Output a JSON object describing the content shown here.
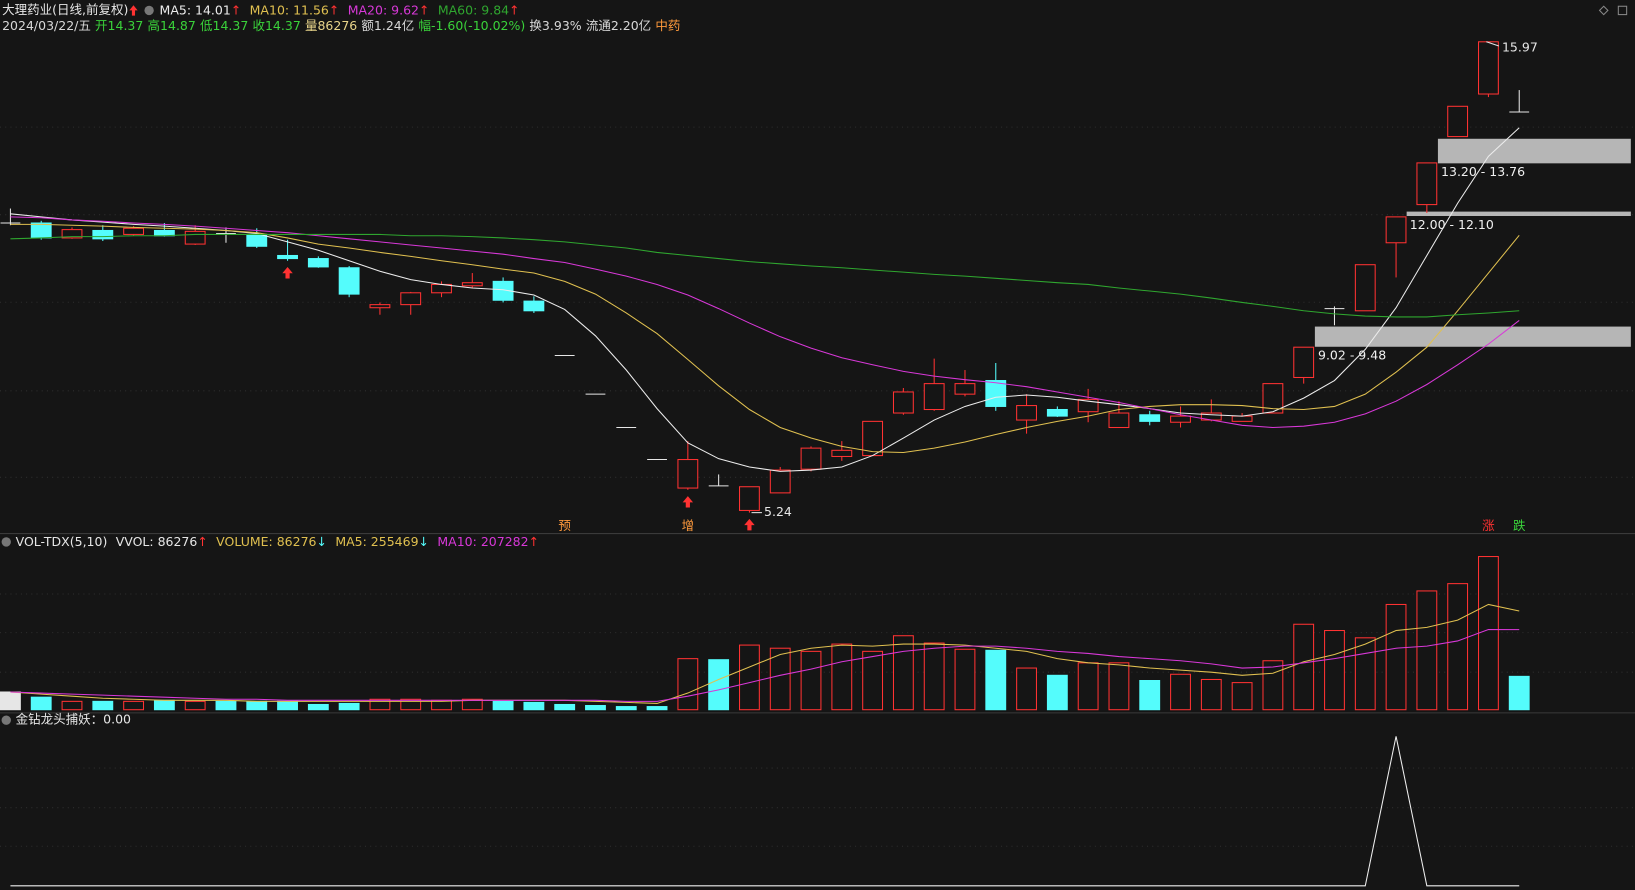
{
  "chart_data": [
    {
      "type": "candlestick",
      "title": "大理药业(日线,前复权)",
      "info": [
        {
          "text": "2024/03/22/五",
          "color": "#d8d8d8"
        },
        {
          "text": "开14.37",
          "color": "#3ad23a"
        },
        {
          "text": "高14.87",
          "color": "#3ad23a"
        },
        {
          "text": "低14.37",
          "color": "#3ad23a"
        },
        {
          "text": "收14.37",
          "color": "#3ad23a"
        },
        {
          "text": "量86276",
          "color": "#e8d48a"
        },
        {
          "text": "额1.24亿",
          "color": "#d8d8d8"
        },
        {
          "text": "幅-1.60(-10.02%)",
          "color": "#3ad23a"
        },
        {
          "text": "换3.93%",
          "color": "#d8d8d8"
        },
        {
          "text": "流通2.20亿",
          "color": "#d8d8d8"
        },
        {
          "text": "中药",
          "color": "#ff9a3c"
        }
      ],
      "open": [
        11.84,
        11.84,
        11.5,
        11.67,
        11.58,
        11.67,
        11.36,
        11.6,
        11.58,
        11.1,
        11.03,
        10.82,
        9.91,
        9.98,
        10.25,
        10.41,
        10.51,
        10.06,
        8.82,
        7.94,
        7.18,
        6.45,
        5.8,
        5.85,
        5.29,
        5.69,
        6.23,
        6.52,
        6.54,
        7.51,
        7.59,
        7.94,
        8.25,
        7.35,
        7.59,
        7.54,
        7.18,
        7.47,
        7.3,
        7.35,
        7.32,
        7.51,
        8.32,
        9.89,
        9.84,
        11.39,
        12.26,
        13.81,
        14.78,
        14.37
      ],
      "high": [
        12.17,
        11.89,
        11.74,
        11.79,
        11.77,
        11.84,
        11.79,
        11.74,
        11.72,
        11.46,
        11.08,
        10.86,
        10.03,
        10.27,
        10.51,
        10.7,
        10.6,
        10.17,
        8.82,
        7.94,
        7.18,
        6.45,
        6.87,
        6.11,
        5.83,
        6.28,
        6.75,
        6.87,
        7.32,
        8.08,
        8.75,
        8.49,
        8.65,
        7.94,
        7.66,
        8.06,
        7.78,
        7.56,
        7.66,
        7.82,
        7.51,
        8.18,
        9.01,
        9.94,
        10.89,
        11.98,
        13.21,
        14.5,
        15.97,
        14.87
      ],
      "low": [
        11.79,
        11.46,
        11.48,
        11.43,
        11.55,
        11.53,
        11.34,
        11.39,
        11.27,
        10.98,
        10.82,
        10.15,
        9.75,
        9.75,
        10.15,
        10.36,
        10.03,
        9.79,
        8.82,
        7.94,
        7.18,
        6.45,
        5.76,
        5.85,
        5.24,
        5.69,
        6.18,
        6.42,
        6.54,
        7.47,
        7.56,
        7.89,
        7.56,
        7.04,
        7.42,
        7.3,
        7.18,
        7.23,
        7.18,
        7.32,
        7.32,
        7.51,
        8.18,
        9.51,
        9.84,
        10.6,
        12.07,
        13.81,
        14.71,
        14.37
      ],
      "close": [
        11.84,
        11.5,
        11.69,
        11.48,
        11.72,
        11.55,
        11.65,
        11.6,
        11.31,
        11.03,
        10.84,
        10.22,
        9.98,
        10.25,
        10.44,
        10.48,
        10.08,
        9.84,
        8.82,
        7.94,
        7.18,
        6.45,
        6.45,
        5.85,
        5.83,
        6.21,
        6.71,
        6.66,
        7.32,
        7.99,
        8.18,
        8.18,
        7.66,
        7.68,
        7.44,
        7.82,
        7.51,
        7.32,
        7.44,
        7.51,
        7.44,
        8.18,
        9.01,
        9.89,
        10.89,
        11.98,
        13.21,
        14.5,
        15.97,
        14.37
      ],
      "up_color": "#ff3232",
      "down_color": "#54fcfc",
      "flat_color": "#e6e6e6",
      "series": [
        {
          "name": "MA5: 14.01",
          "arrow": "↑",
          "color": "#ececec",
          "values": [
            12.05,
            11.98,
            11.91,
            11.86,
            11.81,
            11.77,
            11.72,
            11.67,
            11.6,
            11.41,
            11.22,
            10.98,
            10.74,
            10.55,
            10.44,
            10.36,
            10.32,
            10.2,
            9.87,
            9.27,
            8.49,
            7.61,
            6.83,
            6.47,
            6.28,
            6.18,
            6.21,
            6.28,
            6.54,
            6.94,
            7.35,
            7.66,
            7.87,
            7.92,
            7.87,
            7.78,
            7.7,
            7.61,
            7.51,
            7.47,
            7.44,
            7.54,
            7.85,
            8.25,
            8.96,
            9.91,
            11.1,
            12.29,
            13.36,
            14.01
          ]
        },
        {
          "name": "MA10: 11.56",
          "arrow": "↑",
          "color": "#e0c050",
          "values": [
            11.81,
            11.81,
            11.79,
            11.77,
            11.74,
            11.72,
            11.7,
            11.67,
            11.62,
            11.5,
            11.36,
            11.27,
            11.17,
            11.08,
            10.98,
            10.89,
            10.79,
            10.7,
            10.51,
            10.22,
            9.79,
            9.32,
            8.73,
            8.13,
            7.59,
            7.18,
            6.94,
            6.75,
            6.63,
            6.61,
            6.71,
            6.85,
            7.02,
            7.18,
            7.32,
            7.44,
            7.59,
            7.66,
            7.7,
            7.7,
            7.68,
            7.61,
            7.59,
            7.66,
            7.94,
            8.44,
            9.01,
            9.84,
            10.7,
            11.56
          ]
        },
        {
          "name": "MA20: 9.62",
          "arrow": "↑",
          "color": "#d838d8",
          "values": [
            11.98,
            11.96,
            11.91,
            11.88,
            11.84,
            11.81,
            11.77,
            11.72,
            11.67,
            11.62,
            11.55,
            11.48,
            11.41,
            11.34,
            11.27,
            11.2,
            11.13,
            11.03,
            10.94,
            10.79,
            10.63,
            10.44,
            10.2,
            9.89,
            9.56,
            9.25,
            8.99,
            8.77,
            8.61,
            8.46,
            8.35,
            8.27,
            8.2,
            8.11,
            7.99,
            7.87,
            7.75,
            7.61,
            7.47,
            7.35,
            7.23,
            7.18,
            7.21,
            7.3,
            7.49,
            7.78,
            8.16,
            8.61,
            9.08,
            9.62
          ]
        },
        {
          "name": "MA60: 9.84",
          "arrow": "↑",
          "color": "#2fa62f",
          "values": [
            11.48,
            11.5,
            11.53,
            11.53,
            11.55,
            11.55,
            11.58,
            11.58,
            11.58,
            11.58,
            11.58,
            11.58,
            11.58,
            11.55,
            11.55,
            11.53,
            11.5,
            11.46,
            11.41,
            11.34,
            11.27,
            11.17,
            11.1,
            11.03,
            10.96,
            10.91,
            10.86,
            10.82,
            10.77,
            10.72,
            10.67,
            10.63,
            10.58,
            10.53,
            10.48,
            10.44,
            10.36,
            10.29,
            10.22,
            10.13,
            10.03,
            9.94,
            9.84,
            9.77,
            9.72,
            9.7,
            9.7,
            9.75,
            9.79,
            9.84
          ]
        }
      ],
      "arrow_color": "#ff3232",
      "ylim": [
        4.81,
        16.21
      ],
      "zones": [
        {
          "low": 13.2,
          "high": 13.76,
          "label": "13.20 - 13.76"
        },
        {
          "low": 12.0,
          "high": 12.1,
          "label": "12.00 - 12.10"
        },
        {
          "low": 9.02,
          "high": 9.48,
          "label": "9.02 - 9.48"
        }
      ],
      "zone_color": "#c4c4c4",
      "markers": [
        {
          "text": "预",
          "index": 18,
          "color": "#ff9a3c"
        },
        {
          "text": "增",
          "index": 22,
          "color": "#ff9a3c"
        },
        {
          "text": "涨",
          "index": 48,
          "color": "#ff3232"
        },
        {
          "text": "跌",
          "index": 49,
          "color": "#3ad23a"
        }
      ],
      "signals": [
        9,
        22,
        24
      ]
    },
    {
      "type": "bar",
      "title": "VOL-TDX(5,10)",
      "values": [
        45800,
        32400,
        21600,
        21600,
        21600,
        24300,
        21600,
        21600,
        21600,
        21600,
        13500,
        16200,
        27000,
        27000,
        24300,
        27000,
        21600,
        18900,
        13500,
        10800,
        8100,
        8100,
        132100,
        129400,
        167200,
        159100,
        151000,
        169800,
        151000,
        191400,
        172500,
        156400,
        153700,
        107800,
        89000,
        121300,
        121300,
        75500,
        91700,
        78200,
        70100,
        126700,
        221100,
        204900,
        186000,
        272300,
        307300,
        326200,
        396300,
        86276
      ],
      "legend": [
        {
          "name": "VVOL: 86276",
          "arrow": "↑",
          "color": "#e6e6e6",
          "arrow_color": "#ff3232"
        },
        {
          "name": "VOLUME: 86276",
          "arrow": "↓",
          "color": "#e0c050",
          "arrow_color": "#54fcfc"
        }
      ],
      "series": [
        {
          "name": "MA5: 255469",
          "arrow": "↓",
          "arrow_color": "#54fcfc",
          "color": "#e0c050",
          "values": [
            45800,
            40400,
            35000,
            29700,
            27000,
            24300,
            24300,
            24300,
            21600,
            21600,
            21600,
            21600,
            21600,
            21600,
            21600,
            24300,
            24300,
            24300,
            24300,
            21600,
            18900,
            16200,
            43100,
            78200,
            110500,
            142900,
            159100,
            167200,
            164500,
            169800,
            169800,
            167200,
            159100,
            151000,
            132100,
            121300,
            115900,
            107800,
            102400,
            97100,
            89000,
            94400,
            124000,
            142900,
            169800,
            204900,
            213000,
            231900,
            272300,
            255469
          ]
        },
        {
          "name": "MA10: 207282",
          "arrow": "↑",
          "arrow_color": "#ff3232",
          "color": "#d838d8",
          "values": [
            45800,
            43100,
            40400,
            37700,
            35000,
            32400,
            29700,
            27000,
            27000,
            24300,
            24300,
            24300,
            24300,
            24300,
            24300,
            24300,
            24300,
            24300,
            24300,
            24300,
            21600,
            21600,
            35000,
            51200,
            70100,
            89000,
            105100,
            124000,
            137500,
            151000,
            159100,
            164500,
            164500,
            159100,
            151000,
            145600,
            137500,
            132100,
            126700,
            118600,
            107800,
            110500,
            121300,
            132100,
            145600,
            159100,
            164500,
            177900,
            207600,
            207282
          ]
        }
      ],
      "ylim": [
        0,
        453000
      ]
    },
    {
      "type": "line",
      "title": "金钻龙头捕妖：0.00",
      "series": [
        {
          "color": "#f0f0f0",
          "values": [
            0,
            0,
            0,
            0,
            0,
            0,
            0,
            0,
            0,
            0,
            0,
            0,
            0,
            0,
            0,
            0,
            0,
            0,
            0,
            0,
            0,
            0,
            0,
            0,
            0,
            0,
            0,
            0,
            0,
            0,
            0,
            0,
            0,
            0,
            0,
            0,
            0,
            0,
            0,
            0,
            0,
            0,
            0,
            0,
            0,
            100,
            0,
            0,
            0,
            0
          ]
        }
      ],
      "ylim": [
        0,
        115
      ]
    }
  ]
}
